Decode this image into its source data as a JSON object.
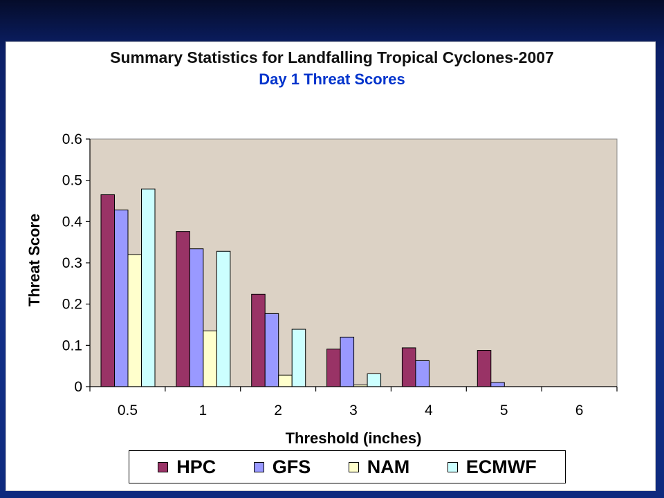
{
  "colors": {
    "plot_background": "#dcd2c5",
    "subtitle": "#0033cc",
    "axis": "#000000"
  },
  "chart_data": {
    "type": "bar",
    "title": "Summary Statistics for Landfalling Tropical Cyclones-2007",
    "subtitle": "Day 1 Threat Scores",
    "xlabel": "Threshold (inches)",
    "ylabel": "Threat Score",
    "categories": [
      "0.5",
      "1",
      "2",
      "3",
      "4",
      "5",
      "6"
    ],
    "ylim": [
      0,
      0.6
    ],
    "yticks": [
      "0",
      "0.1",
      "0.2",
      "0.3",
      "0.4",
      "0.5",
      "0.6"
    ],
    "grid": false,
    "legend_position": "bottom",
    "series": [
      {
        "name": "HPC",
        "color": "#993366",
        "values": [
          0.465,
          0.376,
          0.224,
          0.091,
          0.094,
          0.088,
          0
        ]
      },
      {
        "name": "GFS",
        "color": "#9999ff",
        "values": [
          0.428,
          0.334,
          0.177,
          0.12,
          0.063,
          0.01,
          0
        ]
      },
      {
        "name": "NAM",
        "color": "#ffffcc",
        "values": [
          0.32,
          0.135,
          0.028,
          0.004,
          0,
          0,
          0
        ]
      },
      {
        "name": "ECMWF",
        "color": "#ccffff",
        "values": [
          0.479,
          0.328,
          0.139,
          0.031,
          0,
          0,
          0
        ]
      }
    ]
  }
}
